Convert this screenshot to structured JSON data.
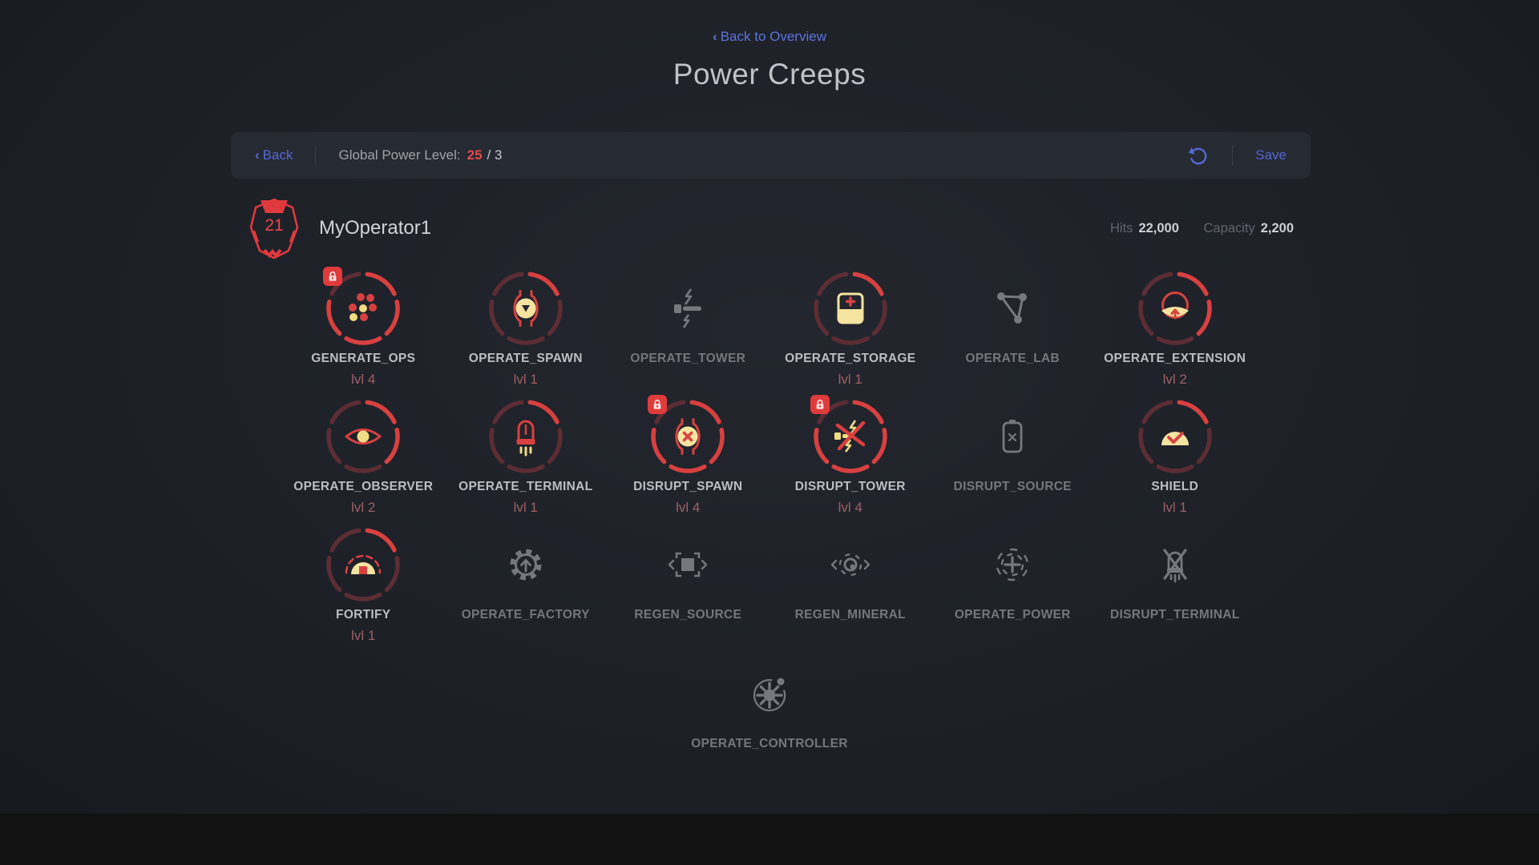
{
  "colors": {
    "accent_blue": "#5568d4",
    "accent_red": "#e8474b",
    "ring_bright": "#d84040",
    "ring_dim": "#5c2d34",
    "icon_red": "#d84040",
    "yellow_pale": "#f5e3a0",
    "yellow_bright": "#f0dc82",
    "gray_icon": "#75797f",
    "badge_red": "#e8474b"
  },
  "glyphs": {
    "chevron_left": "‹"
  },
  "header": {
    "back_to_overview": "Back to Overview",
    "title": "Power Creeps"
  },
  "toolbar": {
    "back": "Back",
    "gpl_label": "Global Power Level:",
    "gpl_value": "25",
    "gpl_rest": "/ 3",
    "refresh_icon": "undo-refresh",
    "save": "Save"
  },
  "creep": {
    "badge_level": "21",
    "name": "MyOperator1",
    "hits_label": "Hits",
    "hits_value": "22,000",
    "capacity_label": "Capacity",
    "capacity_value": "2,200"
  },
  "powers": [
    {
      "name": "GENERATE_OPS",
      "level": 4,
      "level_label": "lvl 4",
      "enabled": true,
      "locked": true,
      "icon": "generate-ops",
      "row": 1
    },
    {
      "name": "OPERATE_SPAWN",
      "level": 1,
      "level_label": "lvl 1",
      "enabled": true,
      "locked": false,
      "icon": "operate-spawn",
      "row": 1
    },
    {
      "name": "OPERATE_TOWER",
      "level": 0,
      "level_label": "",
      "enabled": false,
      "locked": false,
      "icon": "operate-tower",
      "row": 1
    },
    {
      "name": "OPERATE_STORAGE",
      "level": 1,
      "level_label": "lvl 1",
      "enabled": true,
      "locked": false,
      "icon": "operate-storage",
      "row": 1
    },
    {
      "name": "OPERATE_LAB",
      "level": 0,
      "level_label": "",
      "enabled": false,
      "locked": false,
      "icon": "operate-lab",
      "row": 1
    },
    {
      "name": "OPERATE_EXTENSION",
      "level": 2,
      "level_label": "lvl 2",
      "enabled": true,
      "locked": false,
      "icon": "operate-extension",
      "row": 1
    },
    {
      "name": "OPERATE_OBSERVER",
      "level": 2,
      "level_label": "lvl 2",
      "enabled": true,
      "locked": false,
      "icon": "operate-observer",
      "row": 2
    },
    {
      "name": "OPERATE_TERMINAL",
      "level": 1,
      "level_label": "lvl 1",
      "enabled": true,
      "locked": false,
      "icon": "operate-terminal",
      "row": 2
    },
    {
      "name": "DISRUPT_SPAWN",
      "level": 4,
      "level_label": "lvl 4",
      "enabled": true,
      "locked": true,
      "icon": "disrupt-spawn",
      "row": 2
    },
    {
      "name": "DISRUPT_TOWER",
      "level": 4,
      "level_label": "lvl 4",
      "enabled": true,
      "locked": true,
      "icon": "disrupt-tower",
      "row": 2
    },
    {
      "name": "DISRUPT_SOURCE",
      "level": 0,
      "level_label": "",
      "enabled": false,
      "locked": false,
      "icon": "disrupt-source",
      "row": 2
    },
    {
      "name": "SHIELD",
      "level": 1,
      "level_label": "lvl 1",
      "enabled": true,
      "locked": false,
      "icon": "shield",
      "row": 2
    },
    {
      "name": "FORTIFY",
      "level": 1,
      "level_label": "lvl 1",
      "enabled": true,
      "locked": false,
      "icon": "fortify",
      "row": 3
    },
    {
      "name": "OPERATE_FACTORY",
      "level": 0,
      "level_label": "",
      "enabled": false,
      "locked": false,
      "icon": "operate-factory",
      "row": 3
    },
    {
      "name": "REGEN_SOURCE",
      "level": 0,
      "level_label": "",
      "enabled": false,
      "locked": false,
      "icon": "regen-source",
      "row": 3
    },
    {
      "name": "REGEN_MINERAL",
      "level": 0,
      "level_label": "",
      "enabled": false,
      "locked": false,
      "icon": "regen-mineral",
      "row": 3
    },
    {
      "name": "OPERATE_POWER",
      "level": 0,
      "level_label": "",
      "enabled": false,
      "locked": false,
      "icon": "operate-power",
      "row": 3
    },
    {
      "name": "DISRUPT_TERMINAL",
      "level": 0,
      "level_label": "",
      "enabled": false,
      "locked": false,
      "icon": "disrupt-terminal",
      "row": 3
    },
    {
      "name": "OPERATE_CONTROLLER",
      "level": 0,
      "level_label": "",
      "enabled": false,
      "locked": false,
      "icon": "operate-controller",
      "row": 4
    }
  ]
}
